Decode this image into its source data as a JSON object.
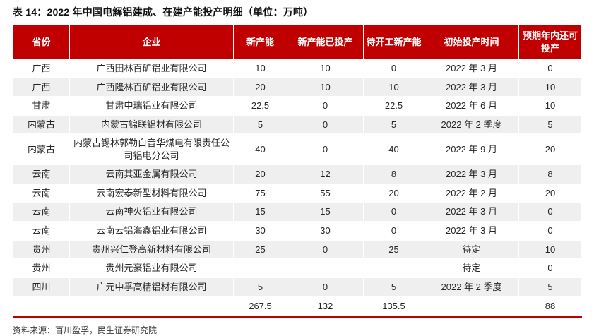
{
  "title": "表 14：2022 年中国电解铝建成、在建产能投产明细（单位：万吨）",
  "source": "资料来源：百川盈孚，民生证券研究院",
  "colors": {
    "header_bg": "#C00000",
    "accent_red": "#C00000",
    "alt_row_bg": "#EFEFEF"
  },
  "table": {
    "columns": [
      "省份",
      "企业",
      "新产能",
      "新产能已投产",
      "待开工新产能",
      "初始投产时间",
      "预期年内还可投产"
    ],
    "rows": [
      [
        "广西",
        "广西田林百矿铝业有限公司",
        "10",
        "10",
        "0",
        "2022 年 3 月",
        "0"
      ],
      [
        "广西",
        "广西隆林百矿铝业有限公司",
        "20",
        "10",
        "10",
        "2022 年 3 月",
        "10"
      ],
      [
        "甘肃",
        "甘肃中瑞铝业有限公司",
        "22.5",
        "0",
        "22.5",
        "2022 年 6 月",
        "10"
      ],
      [
        "内蒙古",
        "内蒙古锦联铝材有限公司",
        "5",
        "0",
        "5",
        "2022 年 2 季度",
        "5"
      ],
      [
        "内蒙古",
        "内蒙古锡林郭勒白音华煤电有限责任公司铝电分公司",
        "40",
        "0",
        "40",
        "2022 年 9 月",
        "20"
      ],
      [
        "云南",
        "云南其亚金属有限公司",
        "20",
        "12",
        "8",
        "2022 年 3 月",
        "8"
      ],
      [
        "云南",
        "云南宏泰新型材料有限公司",
        "75",
        "55",
        "20",
        "2022 年 2 月",
        "20"
      ],
      [
        "云南",
        "云南神火铝业有限公司",
        "15",
        "15",
        "0",
        "2022 年 3 月",
        "0"
      ],
      [
        "云南",
        "云南云铝海鑫铝业有限公司",
        "30",
        "30",
        "0",
        "2022 年 3 月",
        "0"
      ],
      [
        "贵州",
        "贵州兴仁登高新材料有限公司",
        "25",
        "0",
        "25",
        "待定",
        "10"
      ],
      [
        "贵州",
        "贵州元豪铝业有限公司",
        "",
        "",
        "",
        "待定",
        "0"
      ],
      [
        "四川",
        "广元中孚高精铝材有限公司",
        "5",
        "0",
        "5",
        "2022 年 2 季度",
        "5"
      ]
    ],
    "total_row": [
      "",
      "",
      "267.5",
      "132",
      "135.5",
      "",
      "88"
    ]
  }
}
